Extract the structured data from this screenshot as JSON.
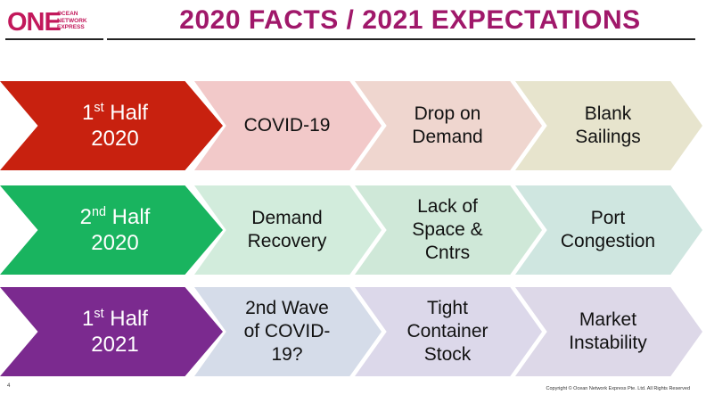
{
  "logo": {
    "main": "ONE",
    "sub": [
      "OCEAN",
      "NETWORK",
      "EXPRESS"
    ]
  },
  "title": "2020 FACTS / 2021 EXPECTATIONS",
  "rows": [
    {
      "period_ord": "1",
      "period_sup": "st",
      "period_word": " Half",
      "period_year": "2020",
      "color": "#c8210f",
      "step_color": "#f2c9c9",
      "steps": [
        "COVID-19",
        "Drop on\nDemand",
        "Blank\nSailings"
      ],
      "step_colors": [
        "#f2c9c9",
        "#efd6cf",
        "#e7e4cd"
      ]
    },
    {
      "period_ord": "2",
      "period_sup": "nd",
      "period_word": " Half",
      "period_year": "2020",
      "color": "#19b45f",
      "steps": [
        "Demand\nRecovery",
        "Lack of\nSpace &\nCntrs",
        "Port\nCongestion"
      ],
      "step_colors": [
        "#d2ecdc",
        "#cfe8d8",
        "#cfe6e0"
      ]
    },
    {
      "period_ord": "1",
      "period_sup": "st",
      "period_word": " Half",
      "period_year": "2021",
      "color": "#7b2a8f",
      "steps": [
        "2nd Wave\nof COVID-\n19?",
        "Tight\nContainer\nStock",
        "Market\nInstability"
      ],
      "step_colors": [
        "#d5dce9",
        "#dcd8ea",
        "#ddd8e8"
      ]
    }
  ],
  "footer": {
    "page": "4",
    "copyright": "Copyright © Ocean Network Express Pte. Ltd. All Rights Reserved"
  }
}
